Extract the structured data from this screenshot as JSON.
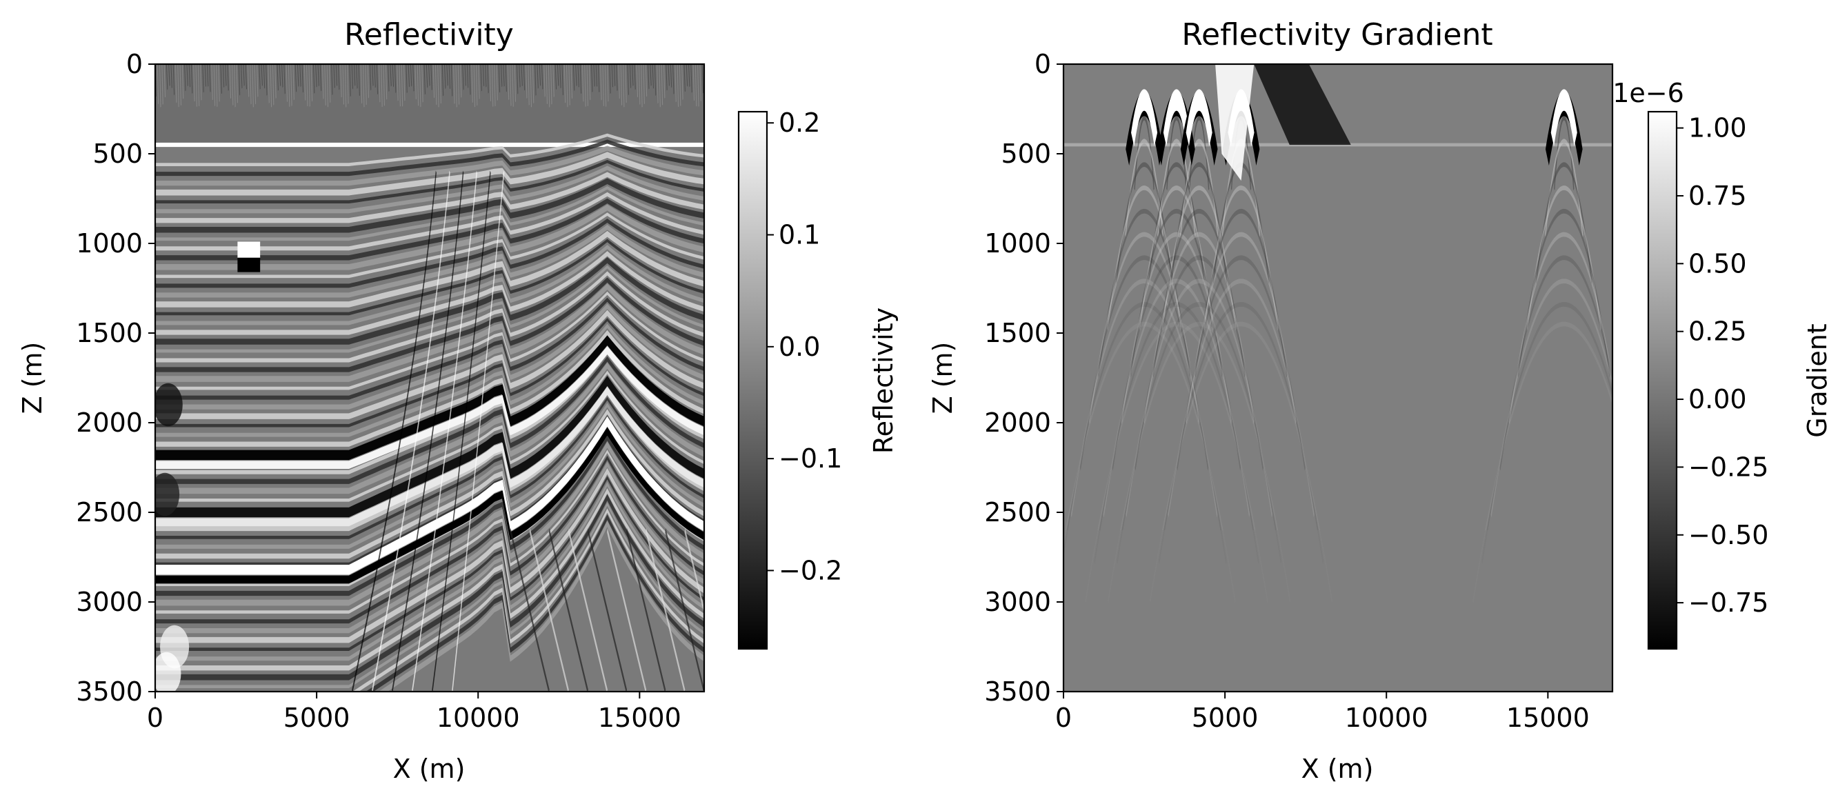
{
  "chart_data": [
    {
      "type": "heatmap",
      "title": "Reflectivity",
      "xlabel": "X (m)",
      "ylabel": "Z (m)",
      "xlim": [
        0,
        17000
      ],
      "ylim": [
        3500,
        0
      ],
      "x_ticks": [
        "0",
        "5000",
        "10000",
        "15000"
      ],
      "y_ticks": [
        "0",
        "500",
        "1000",
        "1500",
        "2000",
        "2500",
        "3000",
        "3500"
      ],
      "colormap": "gray",
      "colorbar": {
        "label": "Reflectivity",
        "range": [
          -0.27,
          0.21
        ],
        "ticks": [
          "0.2",
          "0.1",
          "0.0",
          "−0.1",
          "−0.2"
        ],
        "tick_values": [
          0.2,
          0.1,
          0.0,
          -0.1,
          -0.2
        ],
        "offset_label": ""
      },
      "features": {
        "water_bottom_depth": 450,
        "anticline_crest_x": 14000,
        "anticline_crest_z": 1500,
        "fault_x": 10500,
        "anomaly_x": 2900,
        "anomaly_z": 1080
      }
    },
    {
      "type": "heatmap",
      "title": "Reflectivity Gradient",
      "xlabel": "X (m)",
      "ylabel": "Z (m)",
      "xlim": [
        0,
        17000
      ],
      "ylim": [
        3500,
        0
      ],
      "x_ticks": [
        "0",
        "5000",
        "10000",
        "15000"
      ],
      "y_ticks": [
        "0",
        "500",
        "1000",
        "1500",
        "2000",
        "2500",
        "3000",
        "3500"
      ],
      "colormap": "gray",
      "colorbar": {
        "label": "Gradient",
        "range": [
          -0.92,
          1.06
        ],
        "ticks": [
          "1.00",
          "0.75",
          "0.50",
          "0.25",
          "0.00",
          "−0.25",
          "−0.50",
          "−0.75"
        ],
        "tick_values": [
          1.0,
          0.75,
          0.5,
          0.25,
          0.0,
          -0.25,
          -0.5,
          -0.75
        ],
        "offset_label": "1e−6"
      },
      "features": {
        "source_x": [
          2500,
          3500,
          4200,
          5500,
          15500
        ],
        "strong_zone_depth": [
          0,
          650
        ],
        "decay_depth": 3000
      }
    }
  ]
}
